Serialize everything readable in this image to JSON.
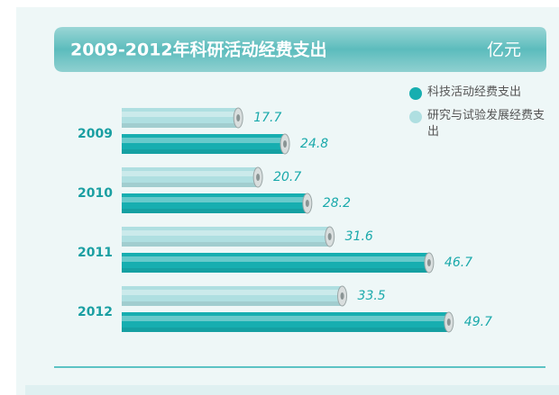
{
  "chart_data": {
    "type": "bar",
    "orientation": "horizontal",
    "title": "2009-2012年科研活动经费支出",
    "unit": "亿元",
    "categories": [
      "2009",
      "2010",
      "2011",
      "2012"
    ],
    "series": [
      {
        "name": "科技活动经费支出",
        "color": "#17aeb0",
        "values": [
          24.8,
          28.2,
          46.7,
          49.7
        ]
      },
      {
        "name": "研究与试验发展经费支出",
        "color": "#afdfe1",
        "values": [
          17.7,
          20.7,
          31.6,
          33.5
        ]
      }
    ]
  }
}
